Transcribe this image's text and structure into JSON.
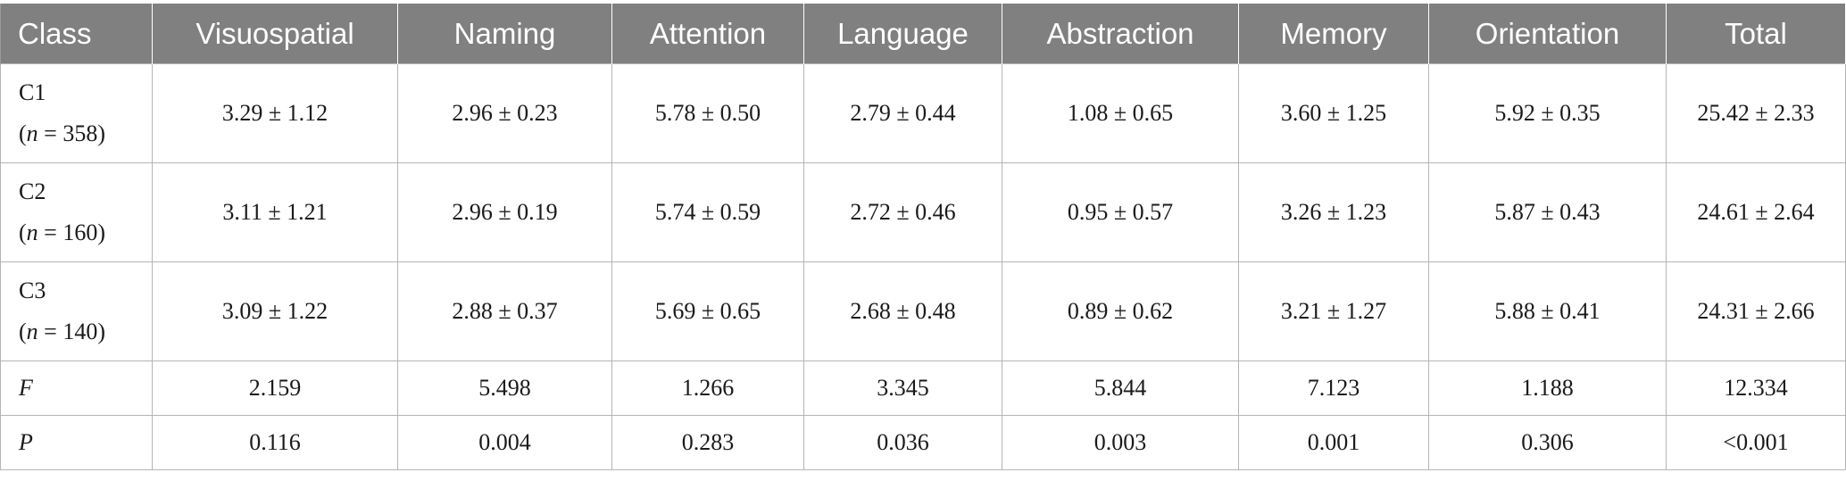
{
  "table": {
    "headers": [
      "Class",
      "Visuospatial",
      "Naming",
      "Attention",
      "Language",
      "Abstraction",
      "Memory",
      "Orientation",
      "Total"
    ],
    "rows": [
      {
        "label": "C1",
        "n_prefix": "(",
        "n_var": "n",
        "n_suffix": " = 358)",
        "cells": [
          "3.29 ± 1.12",
          "2.96 ± 0.23",
          "5.78 ± 0.50",
          "2.79 ± 0.44",
          "1.08 ± 0.65",
          "3.60 ± 1.25",
          "5.92 ± 0.35",
          "25.42 ± 2.33"
        ]
      },
      {
        "label": "C2",
        "n_prefix": "(",
        "n_var": "n",
        "n_suffix": " = 160)",
        "cells": [
          "3.11 ± 1.21",
          "2.96 ± 0.19",
          "5.74 ± 0.59",
          "2.72 ± 0.46",
          "0.95 ± 0.57",
          "3.26 ± 1.23",
          "5.87 ± 0.43",
          "24.61 ± 2.64"
        ]
      },
      {
        "label": "C3",
        "n_prefix": "(",
        "n_var": "n",
        "n_suffix": " = 140)",
        "cells": [
          "3.09 ± 1.22",
          "2.88 ± 0.37",
          "5.69 ± 0.65",
          "2.68 ± 0.48",
          "0.89 ± 0.62",
          "3.21 ± 1.27",
          "5.88 ± 0.41",
          "24.31 ± 2.66"
        ]
      },
      {
        "label": "F",
        "cells": [
          "2.159",
          "5.498",
          "1.266",
          "3.345",
          "5.844",
          "7.123",
          "1.188",
          "12.334"
        ]
      },
      {
        "label": "P",
        "cells": [
          "0.116",
          "0.004",
          "0.283",
          "0.036",
          "0.003",
          "0.001",
          "0.306",
          "<0.001"
        ]
      }
    ]
  }
}
